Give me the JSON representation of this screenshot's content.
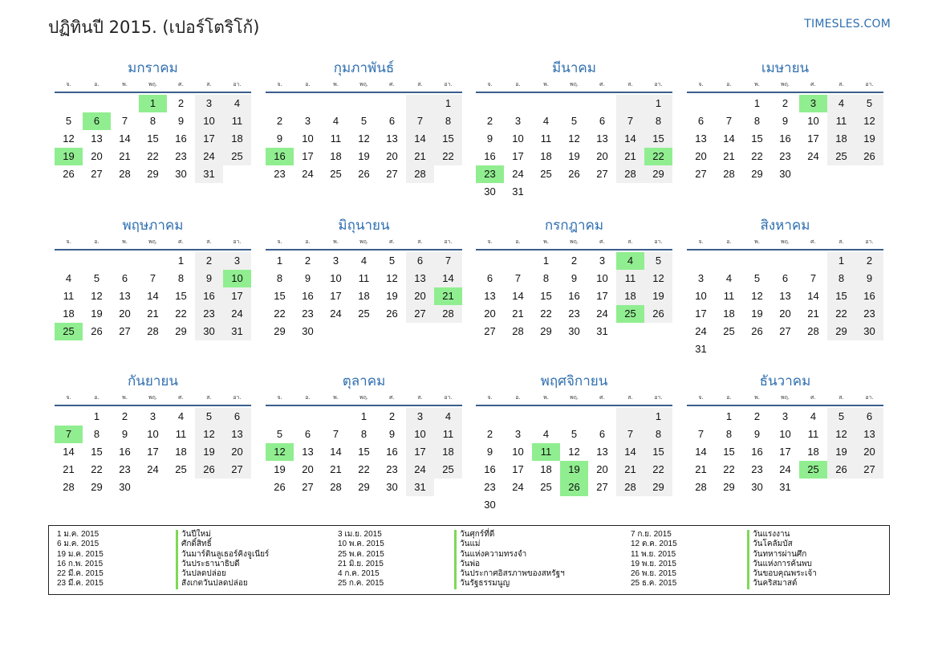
{
  "header": {
    "title": "ปฏิทินปี 2015. (เปอร์โตริโก้)",
    "brand": "TIMESLES.COM"
  },
  "weekdays": [
    "จ.",
    "อ.",
    "พ.",
    "พฤ.",
    "ศ.",
    "ส.",
    "อา."
  ],
  "months": [
    {
      "name": "มกราคม",
      "offset": 3,
      "days": 31,
      "holidays": [
        1,
        6,
        19
      ]
    },
    {
      "name": "กุมภาพันธ์",
      "offset": 6,
      "days": 28,
      "holidays": [
        16
      ]
    },
    {
      "name": "มีนาคม",
      "offset": 6,
      "days": 31,
      "holidays": [
        22,
        23
      ]
    },
    {
      "name": "เมษายน",
      "offset": 2,
      "days": 30,
      "holidays": [
        3
      ]
    },
    {
      "name": "พฤษภาคม",
      "offset": 4,
      "days": 31,
      "holidays": [
        10,
        25
      ]
    },
    {
      "name": "มิถุนายน",
      "offset": 0,
      "days": 30,
      "holidays": [
        21
      ]
    },
    {
      "name": "กรกฎาคม",
      "offset": 2,
      "days": 31,
      "holidays": [
        4,
        25
      ]
    },
    {
      "name": "สิงหาคม",
      "offset": 5,
      "days": 31,
      "holidays": []
    },
    {
      "name": "กันยายน",
      "offset": 1,
      "days": 30,
      "holidays": [
        7
      ]
    },
    {
      "name": "ตุลาคม",
      "offset": 3,
      "days": 31,
      "holidays": [
        12
      ]
    },
    {
      "name": "พฤศจิกายน",
      "offset": 6,
      "days": 30,
      "holidays": [
        11,
        19,
        26
      ]
    },
    {
      "name": "ธันวาคม",
      "offset": 1,
      "days": 31,
      "holidays": [
        25
      ]
    }
  ],
  "legend": [
    {
      "dates": [
        "1 ม.ค. 2015",
        "6 ม.ค. 2015",
        "19 ม.ค. 2015",
        "16 ก.พ. 2015",
        "22 มี.ค. 2015",
        "23 มี.ค. 2015"
      ],
      "names": [
        "วันปีใหม่",
        "ศักดิ์สิทธิ์",
        "วันมาร์ตินลูเธอร์คิงจูเนียร์",
        "วันประธานาธิบดี",
        "วันปลดปล่อย",
        "สังเกตวันปลดปล่อย"
      ]
    },
    {
      "dates": [
        "3 เม.ย. 2015",
        "10 พ.ค. 2015",
        "25 พ.ค. 2015",
        "21 มิ.ย. 2015",
        "4 ก.ค. 2015",
        "25 ก.ค. 2015"
      ],
      "names": [
        "วันศุกร์ที่ดี",
        "วันแม่",
        "วันแห่งความทรงจำ",
        "วันพ่อ",
        "วันประกาศอิสรภาพของสหรัฐฯ",
        "วันรัฐธรรมนูญ"
      ]
    },
    {
      "dates": [
        "7 ก.ย. 2015",
        "12 ต.ค. 2015",
        "11 พ.ย. 2015",
        "19 พ.ย. 2015",
        "26 พ.ย. 2015",
        "25 ธ.ค. 2015"
      ],
      "names": [
        "วันแรงงาน",
        "วันโคลัมบัส",
        "วันทหารผ่านศึก",
        "วันแห่งการค้นพบ",
        "วันขอบคุณพระเจ้า",
        "วันคริสมาสต์"
      ]
    }
  ]
}
